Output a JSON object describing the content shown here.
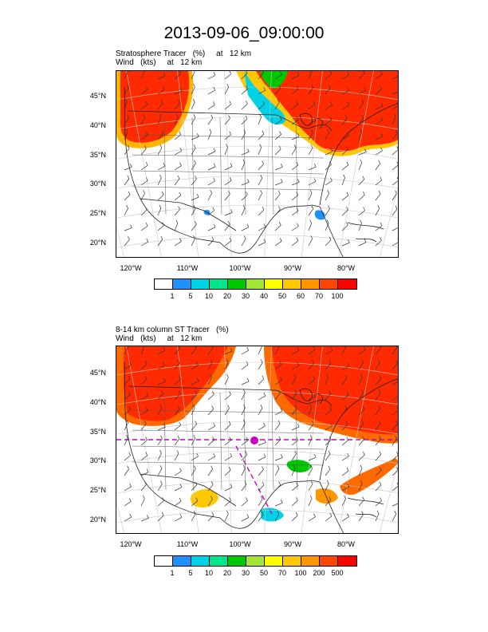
{
  "title": "2013-09-06_09:00:00",
  "panels": [
    {
      "subtitle_line1": "Stratosphere Tracer   (%)     at   12 km",
      "subtitle_line2": "Wind   (kts)     at   12 km",
      "lat_labels": [
        "45°N",
        "40°N",
        "35°N",
        "30°N",
        "25°N",
        "20°N"
      ],
      "lon_labels": [
        "120°W",
        "110°W",
        "100°W",
        "90°W",
        "80°W"
      ],
      "colorbar_labels": [
        "1",
        "5",
        "10",
        "20",
        "30",
        "40",
        "50",
        "60",
        "70",
        "100"
      ]
    },
    {
      "subtitle_line1": "8-14 km column ST Tracer   (%)",
      "subtitle_line2": "Wind   (kts)     at   12 km",
      "lat_labels": [
        "45°N",
        "40°N",
        "35°N",
        "30°N",
        "25°N",
        "20°N"
      ],
      "lon_labels": [
        "120°W",
        "110°W",
        "100°W",
        "90°W",
        "80°W"
      ],
      "colorbar_labels": [
        "1",
        "5",
        "10",
        "20",
        "30",
        "50",
        "70",
        "100",
        "200",
        "500"
      ]
    }
  ],
  "colorbar_colors": [
    "#ffffff",
    "#1e90ff",
    "#00d2e6",
    "#00e68c",
    "#00c800",
    "#a0e632",
    "#ffff00",
    "#ffc800",
    "#ff9600",
    "#ff4600",
    "#ff0000"
  ],
  "colors": {
    "tracer_high": "#ff2a00",
    "tracer_mid": "#ff6a00",
    "overlay_line": "#c800c8"
  }
}
